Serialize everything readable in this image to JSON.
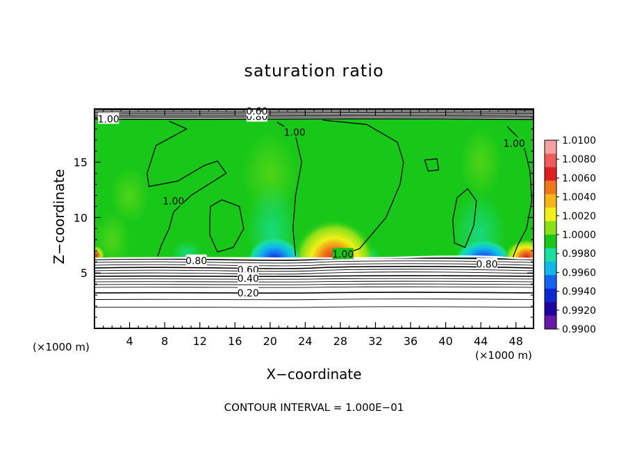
{
  "chart_data": {
    "type": "heatmap",
    "title": "saturation ratio",
    "xlabel": "X−coordinate",
    "ylabel": "Z−coordinate",
    "x_unit_label": "(×1000 m)",
    "y_unit_label": "(×1000 m)",
    "footer": "CONTOUR INTERVAL = 1.000E−01",
    "xlim": [
      0,
      50
    ],
    "ylim": [
      0,
      19.8
    ],
    "x_ticks": [
      "4",
      "8",
      "12",
      "16",
      "20",
      "24",
      "28",
      "32",
      "36",
      "40",
      "44",
      "48"
    ],
    "y_ticks": [
      "5",
      "10",
      "15"
    ],
    "colorbar": {
      "labels": [
        "1.0100",
        "1.0080",
        "1.0060",
        "1.0040",
        "1.0020",
        "1.0000",
        "0.9980",
        "0.9960",
        "0.9940",
        "0.9920",
        "0.9900"
      ],
      "colors": [
        "#f7a0a0",
        "#f05a5a",
        "#e02020",
        "#f07818",
        "#f7b418",
        "#f0f018",
        "#88e018",
        "#18c818",
        "#18e0a0",
        "#10b8e8",
        "#1464f0",
        "#0c28d0",
        "#2000a0",
        "#6818a8"
      ]
    },
    "contour_labels": [
      {
        "text": "1.00",
        "x": 1.6,
        "z": 18.9
      },
      {
        "text": "0.80",
        "x": 18.5,
        "z": 19.1
      },
      {
        "text": "0.60",
        "x": 18.5,
        "z": 19.6
      },
      {
        "text": "1.00",
        "x": 22.8,
        "z": 17.7
      },
      {
        "text": "1.00",
        "x": 47.8,
        "z": 16.7
      },
      {
        "text": "1.00",
        "x": 9.0,
        "z": 11.5
      },
      {
        "text": "1.00",
        "x": 28.3,
        "z": 6.7
      },
      {
        "text": "0.80",
        "x": 11.6,
        "z": 6.1
      },
      {
        "text": "0.80",
        "x": 44.7,
        "z": 5.8
      },
      {
        "text": "0.60",
        "x": 17.5,
        "z": 5.3
      },
      {
        "text": "0.40",
        "x": 17.5,
        "z": 4.5
      },
      {
        "text": "0.20",
        "x": 17.5,
        "z": 3.2
      }
    ],
    "extremes": [
      {
        "kind": "moist max (1.008–1.010)",
        "x": 27.3,
        "z": 6.6
      },
      {
        "kind": "dry min (0.990–0.992)",
        "x": 20.5,
        "z": 6.6
      },
      {
        "kind": "dry min (0.990–0.992)",
        "x": 44.3,
        "z": 6.6
      },
      {
        "kind": "moist max (1.008–1.010)",
        "x": 49.2,
        "z": 6.8
      }
    ],
    "grid": false
  }
}
